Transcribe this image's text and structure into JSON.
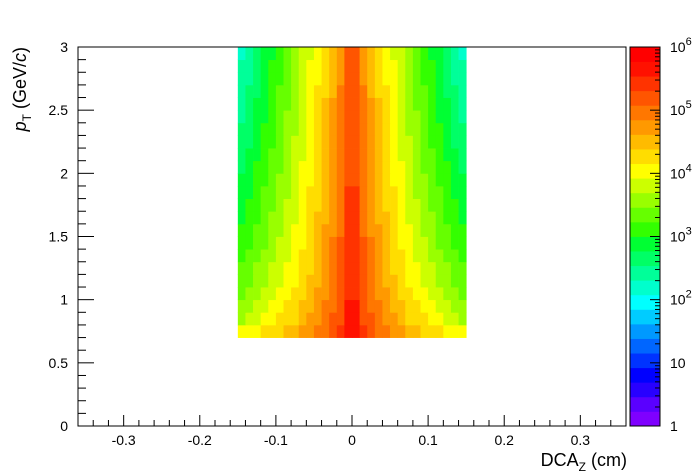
{
  "chart_data": {
    "type": "heatmap",
    "title": "",
    "xlabel": {
      "main": "DCA",
      "sub": "Z",
      "rest": " (cm)"
    },
    "ylabel": {
      "main": "p",
      "sub": "T",
      "rest": " (GeV/",
      "italic": "c",
      "end": ")"
    },
    "xlim": [
      -0.36,
      0.36
    ],
    "ylim": [
      0,
      3
    ],
    "x_ticks": [
      -0.3,
      -0.2,
      -0.1,
      0,
      0.1,
      0.2,
      0.3
    ],
    "x_tick_labels": [
      "-0.3",
      "-0.2",
      "-0.1",
      "0",
      "0.1",
      "0.2",
      "0.3"
    ],
    "y_ticks": [
      0,
      0.5,
      1,
      1.5,
      2,
      2.5,
      3
    ],
    "y_tick_labels": [
      "0",
      "0.5",
      "1",
      "1.5",
      "2",
      "2.5",
      "3"
    ],
    "z_scale": "log",
    "z_range": [
      1,
      1000000
    ],
    "z_ticks": [
      {
        "value": 1,
        "base": "1",
        "exp": ""
      },
      {
        "value": 10,
        "base": "10",
        "exp": ""
      },
      {
        "value": 100,
        "base": "10",
        "exp": "2"
      },
      {
        "value": 1000,
        "base": "10",
        "exp": "3"
      },
      {
        "value": 10000,
        "base": "10",
        "exp": "4"
      },
      {
        "value": 100000,
        "base": "10",
        "exp": "5"
      },
      {
        "value": 1000000,
        "base": "10",
        "exp": "6"
      }
    ],
    "x_bin_range": [
      -0.15,
      0.15
    ],
    "x_bins": 30,
    "y_bin_range": [
      0.7,
      3.0
    ],
    "y_bins": 23,
    "palette": [
      "#7f00ff",
      "#5a00ff",
      "#2800ff",
      "#0000ff",
      "#0033ff",
      "#0066ff",
      "#0099ff",
      "#00ccff",
      "#00ffff",
      "#00ffcc",
      "#00ff99",
      "#00ff66",
      "#00ff33",
      "#33ff00",
      "#66ff00",
      "#99ff00",
      "#ccff00",
      "#ffff00",
      "#ffdd00",
      "#ffbb00",
      "#ff9900",
      "#ff7700",
      "#ff5500",
      "#ff3300",
      "#ff1100",
      "#ff0000"
    ],
    "profile": {
      "peak_log_lowpt": 6.0,
      "peak_log_highpt": 5.3,
      "falloff_exponent_base": 1.6,
      "edge_log_lowpt": 3.9,
      "edge_log_highpt": 2.2
    }
  }
}
